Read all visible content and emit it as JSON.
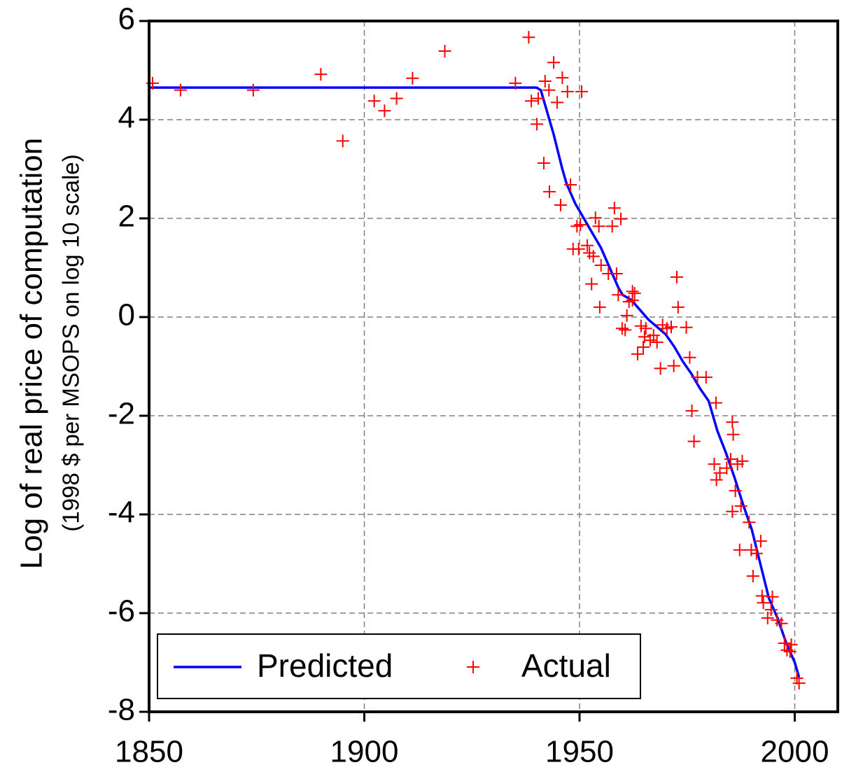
{
  "chart_data": {
    "type": "line",
    "ylabel": "Log of real price of computation",
    "ylabel_sub": "(1998 $ per MSOPS on log 10 scale)",
    "xlim": [
      1850,
      2010
    ],
    "ylim": [
      -8,
      6
    ],
    "xticks": [
      1850,
      1900,
      1950,
      2000
    ],
    "yticks": [
      -8,
      -6,
      -4,
      -2,
      0,
      2,
      4,
      6
    ],
    "grid": true,
    "legend": "lower left",
    "series": [
      {
        "name": "Predicted",
        "color": "#0000ff",
        "style": "line",
        "x": [
          1850,
          1940,
          1941,
          1942,
          1944,
          1946,
          1947,
          1949,
          1950,
          1952,
          1955,
          1957,
          1959,
          1960,
          1962,
          1964,
          1966,
          1968,
          1970,
          1972,
          1974,
          1976,
          1978,
          1980,
          1982,
          1984,
          1986,
          1988,
          1990,
          1992,
          1994,
          1996,
          1998,
          2000,
          2001
        ],
        "values": [
          4.65,
          4.65,
          4.6,
          4.3,
          3.7,
          3.0,
          2.7,
          2.3,
          2.15,
          1.85,
          1.4,
          1.0,
          0.6,
          0.45,
          0.35,
          0.15,
          -0.05,
          -0.2,
          -0.35,
          -0.6,
          -0.9,
          -1.15,
          -1.45,
          -1.7,
          -2.3,
          -2.75,
          -3.25,
          -3.8,
          -4.3,
          -5.0,
          -5.7,
          -6.1,
          -6.6,
          -7.0,
          -7.3
        ]
      },
      {
        "name": "Actual",
        "color": "#ff0000",
        "style": "markers",
        "x": [
          1850.8,
          1857.3,
          1874.2,
          1889.9,
          1895,
          1902.3,
          1904.7,
          1907.5,
          1911.2,
          1918.7,
          1935.1,
          1938.2,
          1938.8,
          1940.4,
          1940.1,
          1941.7,
          1942.0,
          1942.9,
          1943,
          1944,
          1944.8,
          1945.6,
          1946,
          1947.2,
          1947.9,
          1948.5,
          1949.4,
          1950.5,
          1950.2,
          1949.8,
          1951.8,
          1952.3,
          1952.8,
          1953.2,
          1953.7,
          1954.5,
          1954.7,
          1955,
          1956.7,
          1957.6,
          1958.1,
          1958.6,
          1959,
          1959.6,
          1959.9,
          1960.6,
          1961,
          1961.5,
          1962.3,
          1962.8,
          1962.3,
          1963.5,
          1964.3,
          1964.8,
          1965.1,
          1965.4,
          1966.4,
          1967.2,
          1968,
          1968.8,
          1969.3,
          1970.3,
          1971.3,
          1971.9,
          1972.6,
          1972.9,
          1974.8,
          1975.6,
          1976.1,
          1976.6,
          1977.4,
          1979.4,
          1981.3,
          1981.7,
          1981.8,
          1982.6,
          1984.2,
          1985.1,
          1985.5,
          1985.7,
          1985.5,
          1986.2,
          1986.7,
          1987.5,
          1987.8,
          1987.2,
          1989.4,
          1989.9,
          1990.3,
          1991.1,
          1992.1,
          1992.4,
          1992.7,
          1993.7,
          1994.5,
          1994.8,
          1995.9,
          1996.9,
          1997.6,
          1998.2,
          1998.9,
          1999.2,
          2000.5,
          2001
        ],
        "values": [
          4.74,
          4.6,
          4.6,
          4.92,
          3.57,
          4.38,
          4.18,
          4.43,
          4.84,
          5.39,
          4.74,
          5.67,
          4.38,
          4.43,
          3.91,
          3.12,
          4.78,
          4.6,
          2.54,
          5.16,
          4.35,
          2.27,
          4.85,
          4.57,
          2.68,
          1.38,
          1.84,
          4.57,
          1.87,
          1.38,
          1.45,
          1.3,
          0.67,
          1.23,
          2.01,
          1.84,
          0.2,
          1.05,
          0.88,
          1.84,
          2.21,
          0.88,
          0.45,
          1.99,
          -0.23,
          -0.26,
          0.03,
          0.31,
          0.52,
          0.48,
          0.34,
          -0.75,
          -0.18,
          -0.61,
          -0.4,
          -0.23,
          -0.47,
          -0.37,
          -0.51,
          -1.04,
          -0.16,
          -0.23,
          -0.2,
          -0.99,
          0.81,
          0.2,
          -0.21,
          -0.82,
          -1.9,
          -2.52,
          -1.22,
          -1.22,
          -2.98,
          -1.74,
          -3.3,
          -3.16,
          -3.06,
          -2.88,
          -2.13,
          -2.38,
          -3.94,
          -3.52,
          -2.98,
          -3.83,
          -2.92,
          -4.72,
          -4.16,
          -4.72,
          -5.25,
          -4.79,
          -4.54,
          -5.65,
          -5.79,
          -6.1,
          -5.93,
          -5.67,
          -6.14,
          -6.21,
          -6.61,
          -6.75,
          -6.78,
          -6.64,
          -7.32,
          -7.42
        ]
      }
    ]
  }
}
